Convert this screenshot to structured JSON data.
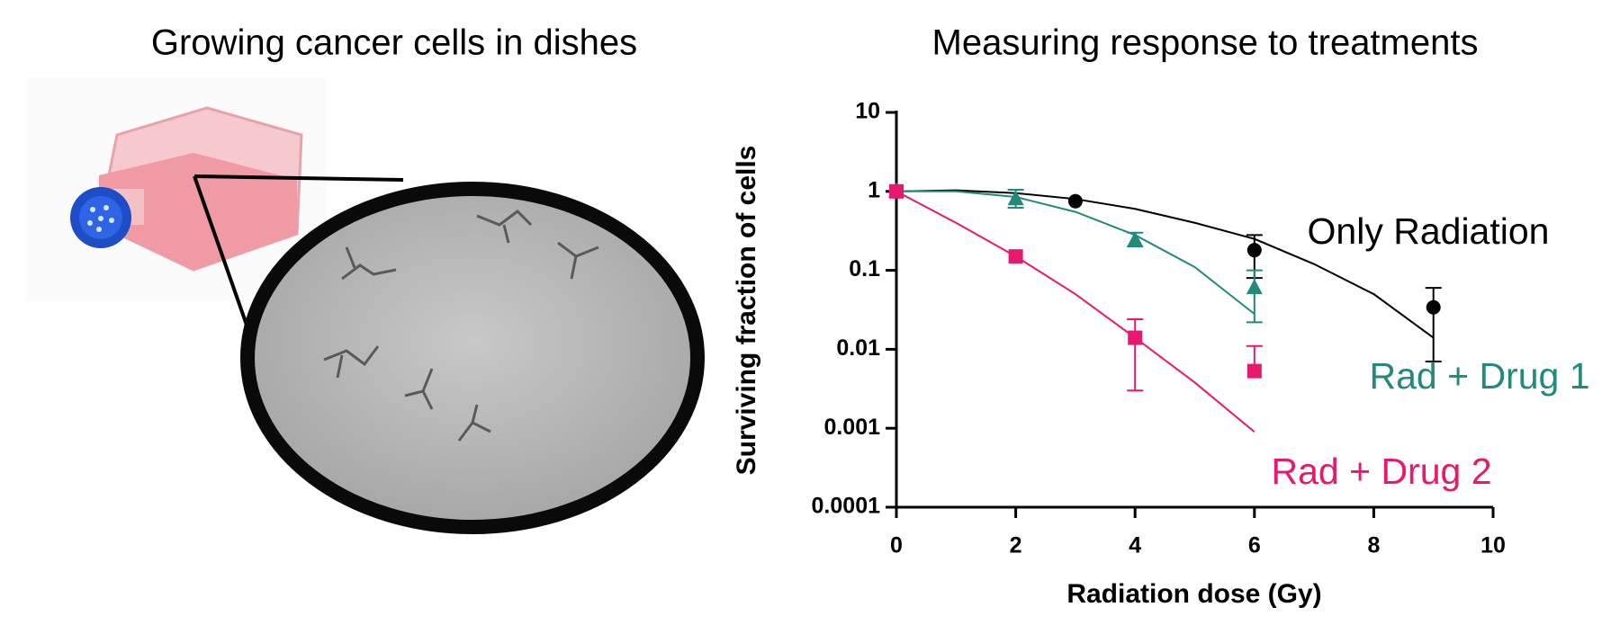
{
  "illustration": {
    "title": "Growing cancer cells in dishes"
  },
  "chart_data": {
    "type": "scatter",
    "title": "Measuring response to treatments",
    "xlabel": "Radiation dose (Gy)",
    "ylabel": "Surviving fraction of cells",
    "xlim": [
      0,
      10
    ],
    "xticks": [
      0,
      2,
      4,
      6,
      8,
      10
    ],
    "ylim": [
      0.0001,
      10
    ],
    "yticks": [
      0.0001,
      0.001,
      0.01,
      0.1,
      1,
      10
    ],
    "ylog": true,
    "series": [
      {
        "name": "Only Radiation",
        "color": "#000000",
        "marker": "circle",
        "x": [
          0,
          3,
          6,
          9
        ],
        "values": [
          1,
          0.75,
          0.18,
          0.034
        ],
        "err_high": [
          null,
          null,
          0.28,
          0.06
        ],
        "err_low": [
          null,
          null,
          0.08,
          0.007
        ],
        "fit_x": [
          0,
          1,
          2,
          3,
          4,
          5,
          6,
          7,
          8,
          9
        ],
        "fit_y": [
          1,
          1.03,
          0.95,
          0.8,
          0.6,
          0.4,
          0.25,
          0.12,
          0.05,
          0.014
        ]
      },
      {
        "name": "Rad + Drug 1",
        "color": "#23897a",
        "marker": "triangle",
        "x": [
          0,
          2,
          4,
          6
        ],
        "values": [
          1,
          0.8,
          0.24,
          0.06
        ],
        "err_high": [
          null,
          1.05,
          0.3,
          0.1
        ],
        "err_low": [
          null,
          0.62,
          0.2,
          0.022
        ],
        "fit_x": [
          0,
          1,
          2,
          3,
          4,
          5,
          6
        ],
        "fit_y": [
          1,
          1,
          0.85,
          0.55,
          0.28,
          0.11,
          0.028
        ]
      },
      {
        "name": "Rad + Drug 2",
        "color": "#e8186e",
        "marker": "square",
        "x": [
          0,
          2,
          4,
          6
        ],
        "values": [
          1,
          0.15,
          0.014,
          0.0053
        ],
        "err_high": [
          null,
          null,
          0.024,
          0.011
        ],
        "err_low": [
          null,
          null,
          0.003,
          null
        ],
        "fit_x": [
          0,
          1,
          2,
          3,
          4,
          5,
          6
        ],
        "fit_y": [
          1,
          0.4,
          0.15,
          0.05,
          0.014,
          0.0038,
          0.0009
        ]
      }
    ]
  }
}
